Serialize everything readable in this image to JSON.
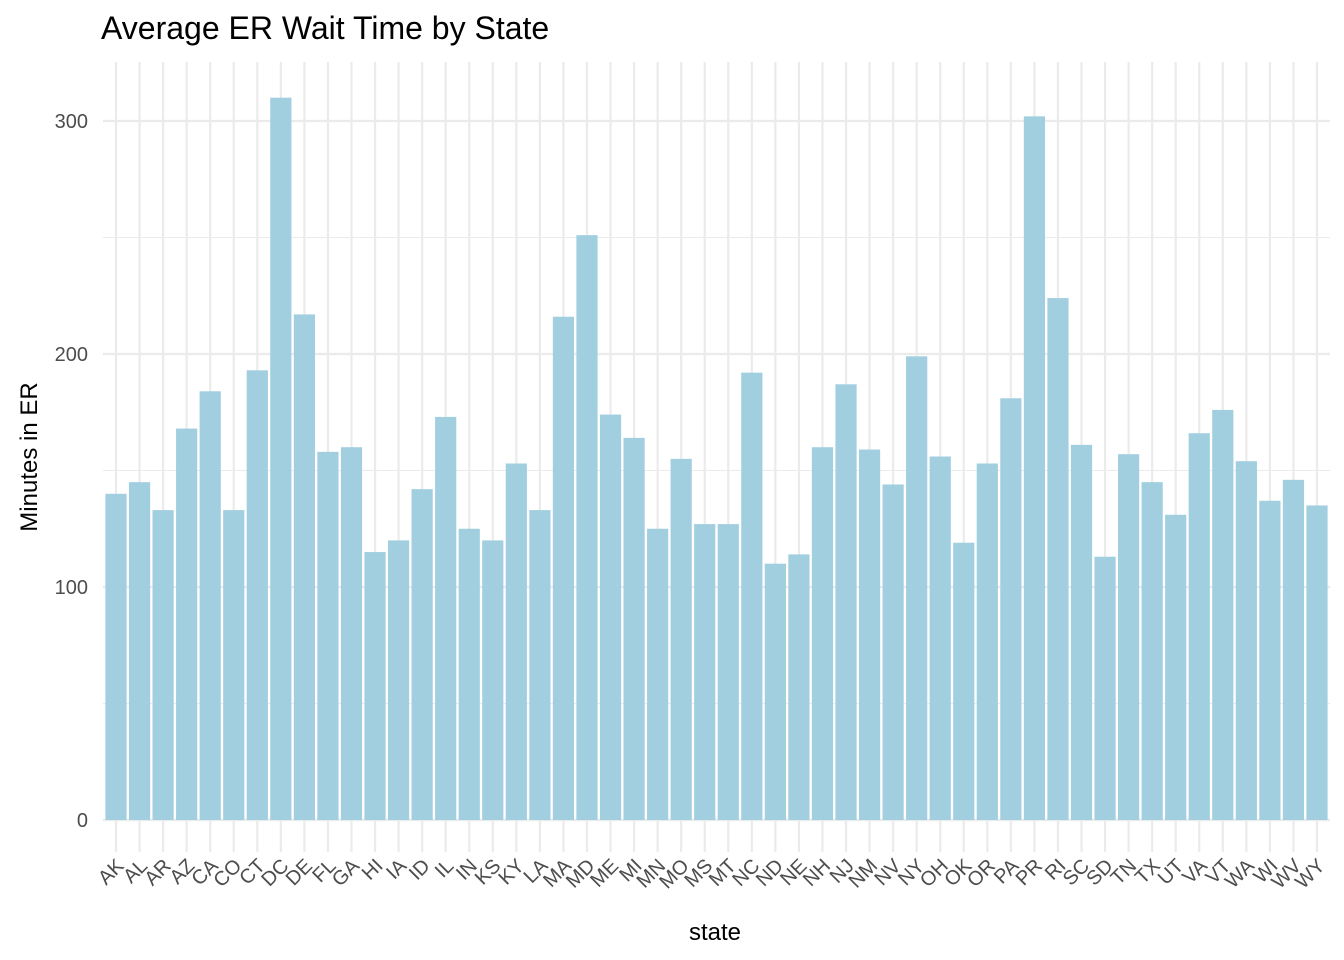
{
  "chart_data": {
    "type": "bar",
    "title": "Average ER Wait Time by State",
    "xlabel": "state",
    "ylabel": "Minutes in ER",
    "ylim": [
      0,
      325
    ],
    "yticks": [
      0,
      100,
      200,
      300
    ],
    "grid": true,
    "bar_color": "#a1cfe0",
    "grid_color": "#ebebeb",
    "categories": [
      "AK",
      "AL",
      "AR",
      "AZ",
      "CA",
      "CO",
      "CT",
      "DC",
      "DE",
      "FL",
      "GA",
      "HI",
      "IA",
      "ID",
      "IL",
      "IN",
      "KS",
      "KY",
      "LA",
      "MA",
      "MD",
      "ME",
      "MI",
      "MN",
      "MO",
      "MS",
      "MT",
      "NC",
      "ND",
      "NE",
      "NH",
      "NJ",
      "NM",
      "NV",
      "NY",
      "OH",
      "OK",
      "OR",
      "PA",
      "PR",
      "RI",
      "SC",
      "SD",
      "TN",
      "TX",
      "UT",
      "VA",
      "VT",
      "WA",
      "WI",
      "WV",
      "WY"
    ],
    "values": [
      140,
      145,
      133,
      168,
      184,
      133,
      193,
      310,
      217,
      158,
      160,
      115,
      120,
      142,
      173,
      125,
      120,
      153,
      133,
      216,
      251,
      174,
      164,
      125,
      155,
      127,
      127,
      192,
      110,
      114,
      160,
      187,
      159,
      144,
      199,
      156,
      119,
      153,
      181,
      302,
      224,
      161,
      113,
      157,
      145,
      131,
      166,
      176,
      154,
      137,
      146,
      135
    ]
  }
}
